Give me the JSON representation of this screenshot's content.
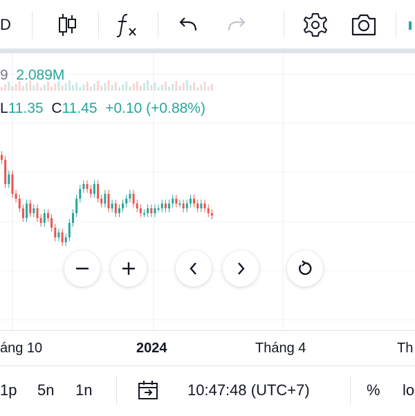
{
  "toolbar": {
    "symbol_fragment": "D",
    "icons": [
      "candles-icon",
      "function-icon",
      "undo-icon",
      "redo-icon",
      "settings-icon",
      "camera-icon"
    ]
  },
  "legend": {
    "volume_prefix": "9",
    "volume_value": "2.089M",
    "low_label": "L",
    "low_value": "11.35",
    "close_label": "C",
    "close_value": "11.45",
    "change": "+0.10 (+0.88%)"
  },
  "colors": {
    "up": "#26a69a",
    "down": "#ef5350",
    "grid": "#f0f3fa",
    "axis_line": "#e0e3eb"
  },
  "time_axis": {
    "ticks": [
      "áng 10",
      "2024",
      "Tháng 4",
      "Th"
    ]
  },
  "bottom_bar": {
    "range_1p": "1p",
    "range_5n": "5n",
    "range_1n": "1n",
    "clock": "10:47:48 (UTC+7)",
    "percent": "%",
    "log_fragment": "lo"
  },
  "chart_data": {
    "type": "candlestick",
    "series": [
      {
        "values": [
          12.6,
          12.1,
          12.3,
          11.9,
          11.8,
          11.6,
          11.4,
          11.7,
          11.5,
          11.6,
          11.4,
          11.3,
          11.5,
          11.4,
          11.2,
          11.0,
          11.1,
          10.9,
          11.0,
          11.3,
          11.5,
          11.8,
          12.0,
          12.1,
          12.0,
          11.9,
          12.1,
          11.8,
          11.7,
          11.9,
          11.6,
          11.7,
          11.5,
          11.6,
          11.7,
          11.8,
          11.9,
          11.7,
          11.6,
          11.5,
          11.5,
          11.6,
          11.5,
          11.6,
          11.6,
          11.7,
          11.6,
          11.7,
          11.8,
          11.7,
          11.7,
          11.6,
          11.7,
          11.8,
          11.7,
          11.6,
          11.7,
          11.6,
          11.5,
          11.45
        ]
      }
    ]
  }
}
